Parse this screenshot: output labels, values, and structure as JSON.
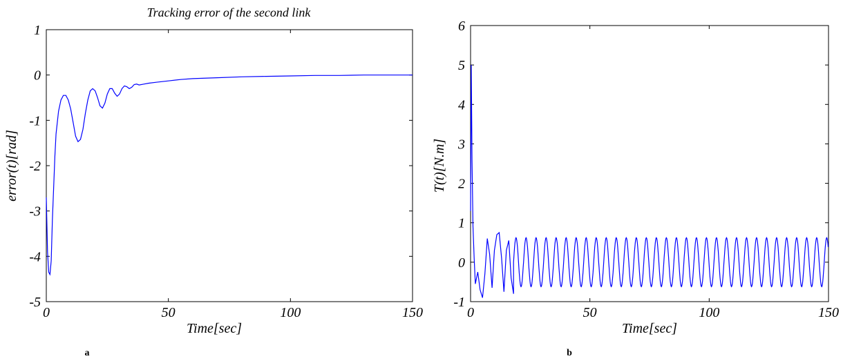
{
  "chart_data": [
    {
      "type": "line",
      "panel_label": "a",
      "title": "Tracking error of the second link",
      "xlabel": "Time[sec]",
      "ylabel": "error(t)[rad]",
      "xlim": [
        0,
        150
      ],
      "ylim": [
        -5,
        1
      ],
      "xticks": [
        "0",
        "50",
        "100",
        "150"
      ],
      "yticks": [
        "-5",
        "-4",
        "-3",
        "-2",
        "-1",
        "0",
        "1"
      ],
      "grid": false,
      "line_color": "#0000ff",
      "series": [
        {
          "x": [
            0,
            0.5,
            1,
            1.5,
            2,
            2.5,
            3,
            3.5,
            4,
            5,
            6,
            7,
            8,
            9,
            10,
            11,
            12,
            13,
            14,
            15,
            16,
            17,
            18,
            19,
            20,
            21,
            22,
            23,
            24,
            25,
            26,
            27,
            28,
            29,
            30,
            31,
            32,
            33,
            34,
            35,
            36,
            37,
            38,
            40,
            42,
            45,
            50,
            55,
            60,
            70,
            80,
            90,
            100,
            110,
            120,
            130,
            140,
            150
          ],
          "y": [
            -2.7,
            -3.9,
            -4.35,
            -4.4,
            -4.1,
            -3.2,
            -2.5,
            -1.8,
            -1.3,
            -0.8,
            -0.55,
            -0.45,
            -0.45,
            -0.55,
            -0.75,
            -1.05,
            -1.35,
            -1.47,
            -1.42,
            -1.2,
            -0.85,
            -0.55,
            -0.35,
            -0.3,
            -0.35,
            -0.5,
            -0.68,
            -0.73,
            -0.62,
            -0.42,
            -0.3,
            -0.3,
            -0.4,
            -0.47,
            -0.42,
            -0.3,
            -0.24,
            -0.26,
            -0.3,
            -0.27,
            -0.21,
            -0.2,
            -0.22,
            -0.2,
            -0.18,
            -0.16,
            -0.13,
            -0.1,
            -0.08,
            -0.06,
            -0.04,
            -0.03,
            -0.02,
            -0.01,
            -0.01,
            0,
            0,
            0
          ]
        }
      ]
    },
    {
      "type": "line",
      "panel_label": "b",
      "title": "",
      "xlabel": "Time[sec]",
      "ylabel": "T(t)[N.m]",
      "xlim": [
        0,
        150
      ],
      "ylim": [
        -1,
        6
      ],
      "xticks": [
        "0",
        "50",
        "100",
        "150"
      ],
      "yticks": [
        "-1",
        "0",
        "1",
        "2",
        "3",
        "4",
        "5",
        "6"
      ],
      "grid": false,
      "line_color": "#0000ff",
      "series": [
        {
          "x": [
            0,
            0.3,
            0.6,
            1,
            1.5,
            2,
            3,
            4,
            5,
            6,
            7,
            8,
            9,
            10,
            11,
            12,
            13,
            14,
            15,
            16,
            17,
            18,
            19,
            20,
            22,
            25,
            30,
            40,
            50,
            60,
            80,
            100,
            120,
            150
          ],
          "y": [
            1.3,
            5.0,
            2.6,
            0.9,
            0.1,
            -0.55,
            -0.25,
            -0.7,
            -0.9,
            -0.3,
            0.6,
            0.2,
            -0.65,
            0.3,
            0.7,
            0.75,
            0.1,
            -0.75,
            0.3,
            0.55,
            -0.4,
            -0.8,
            0.1,
            0.6,
            -0.7,
            0.6,
            -0.6,
            -0.6,
            0.62,
            -0.62,
            0.6,
            -0.6,
            0.6,
            -0.6
          ],
          "oscillation": {
            "amplitude": 0.62,
            "period_sec": 4.2,
            "from_sec": 18
          }
        }
      ]
    }
  ]
}
